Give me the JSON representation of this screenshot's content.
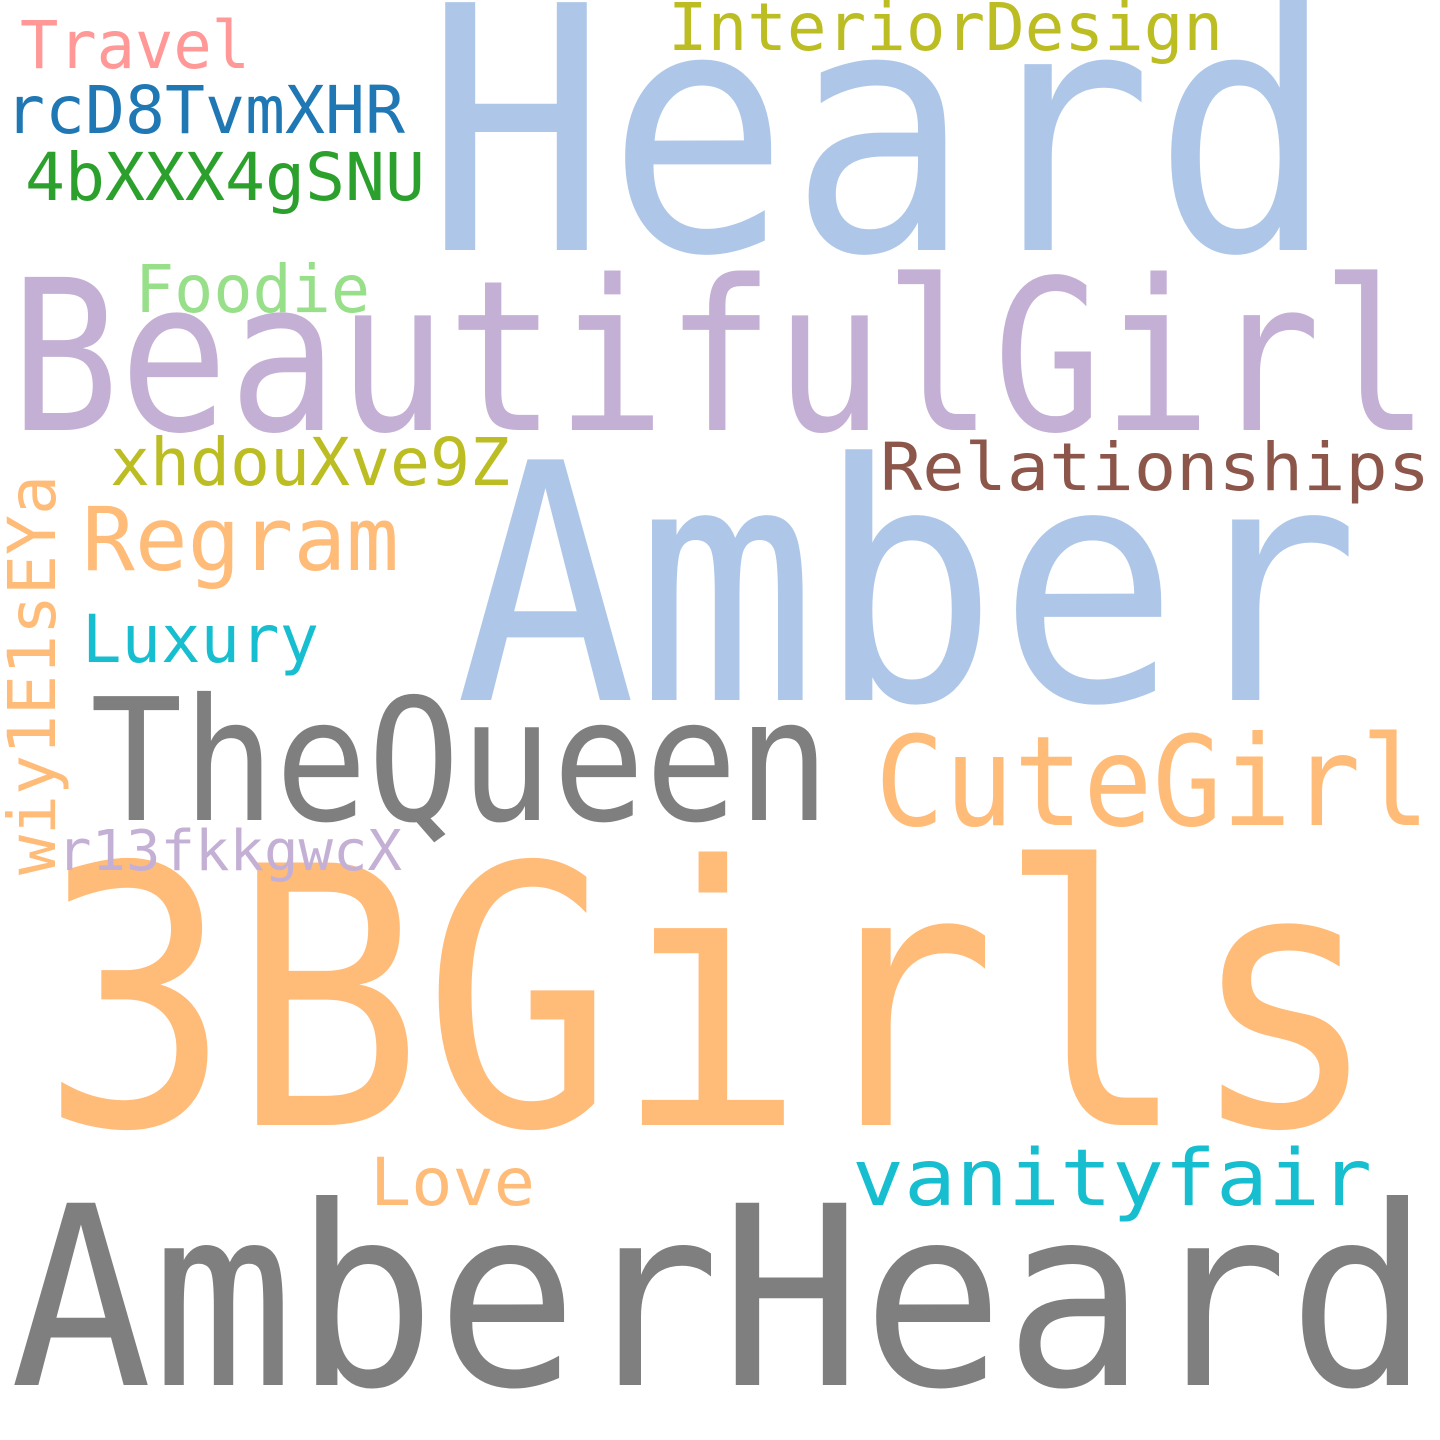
{
  "words": [
    {
      "text": "Heard",
      "color": "#aec7e8"
    },
    {
      "text": "BeautifulGirl",
      "color": "#c5b0d5"
    },
    {
      "text": "Amber",
      "color": "#aec7e8"
    },
    {
      "text": "TheQueen",
      "color": "#7f7f7f"
    },
    {
      "text": "3BGirls",
      "color": "#ffbb78"
    },
    {
      "text": "AmberHeard",
      "color": "#7f7f7f"
    },
    {
      "text": "CuteGirl",
      "color": "#ffbb78"
    },
    {
      "text": "Travel",
      "color": "#ff9896"
    },
    {
      "text": "InteriorDesign",
      "color": "#bcbd22"
    },
    {
      "text": "rcD8TvmXHR",
      "color": "#1f77b4"
    },
    {
      "text": "4bXXX4gSNU",
      "color": "#2ca02c"
    },
    {
      "text": "Foodie",
      "color": "#98df8a"
    },
    {
      "text": "xhdouXve9Z",
      "color": "#bcbd22"
    },
    {
      "text": "Relationships",
      "color": "#8c564b"
    },
    {
      "text": "Regram",
      "color": "#ffbb78"
    },
    {
      "text": "Luxury",
      "color": "#17becf"
    },
    {
      "text": "wiy1E1sEYa",
      "color": "#ffbb78"
    },
    {
      "text": "r13fkkgwcX",
      "color": "#c5b0d5"
    },
    {
      "text": "Love",
      "color": "#ffbb78"
    },
    {
      "text": "vanityfair",
      "color": "#17becf"
    }
  ]
}
